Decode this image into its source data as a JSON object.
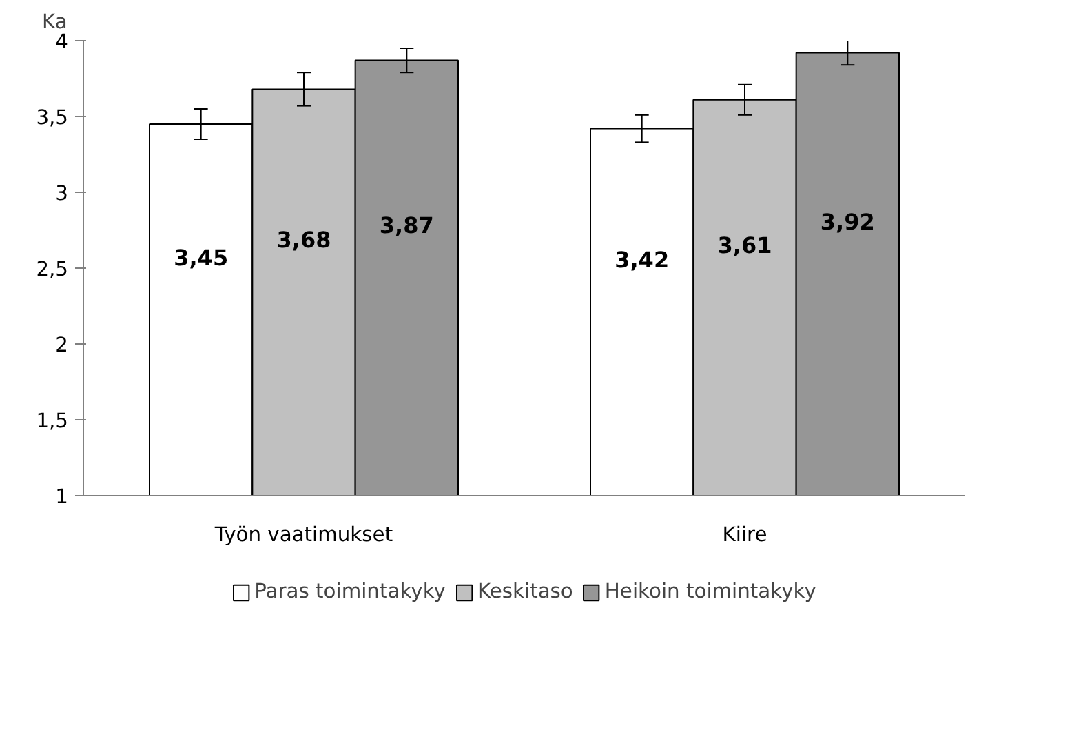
{
  "chart_data": {
    "type": "bar",
    "ylabel": "Ka",
    "categories": [
      "Työn vaatimukset",
      "Kiire"
    ],
    "series": [
      {
        "name": "Paras toimintakyky",
        "color": "#ffffff",
        "values": [
          3.45,
          3.42
        ],
        "errors": [
          0.1,
          0.09
        ],
        "value_labels": [
          "3,45",
          "3,42"
        ]
      },
      {
        "name": "Keskitaso",
        "color": "#c0c0c0",
        "values": [
          3.68,
          3.61
        ],
        "errors": [
          0.11,
          0.1
        ],
        "value_labels": [
          "3,68",
          "3,61"
        ]
      },
      {
        "name": "Heikoin toimintakyky",
        "color": "#969696",
        "values": [
          3.87,
          3.92
        ],
        "errors": [
          0.08,
          0.08
        ],
        "value_labels": [
          "3,87",
          "3,92"
        ]
      }
    ],
    "ylim": [
      1,
      4
    ],
    "yticks": [
      1,
      {
        "value": 1.5,
        "label": "1,5"
      },
      2,
      {
        "value": 2.5,
        "label": "2,5"
      },
      3,
      {
        "value": 3.5,
        "label": "3,5"
      },
      4
    ],
    "grid": false,
    "legend": "bottom"
  }
}
